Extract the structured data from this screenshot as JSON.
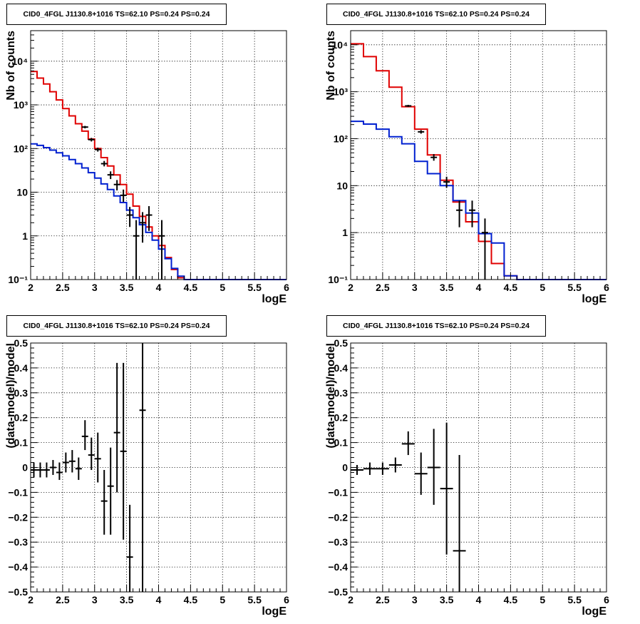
{
  "chart_data": [
    {
      "type": "histogram",
      "title": "CID0_4FGL J1130.8+1016 TS=62.10 PS=0.24 PS=0.24",
      "xlabel": "logE",
      "ylabel": "Nb of counts",
      "xlim": [
        2,
        6
      ],
      "ylim": [
        0.1,
        50000
      ],
      "yscale": "log",
      "x_ticks": [
        "2",
        "2.5",
        "3",
        "3.5",
        "4",
        "4.5",
        "5",
        "5.5",
        "6"
      ],
      "y_ticks": [
        "10⁻¹",
        "1",
        "10",
        "10²",
        "10³",
        "10⁴"
      ],
      "grid": true,
      "bin_edges": [
        2.0,
        2.1,
        2.2,
        2.3,
        2.4,
        2.5,
        2.6,
        2.7,
        2.8,
        2.9,
        3.0,
        3.1,
        3.2,
        3.3,
        3.4,
        3.5,
        3.6,
        3.7,
        3.8,
        3.9,
        4.0,
        4.1,
        4.2,
        4.3,
        4.4,
        4.5,
        4.6,
        4.7,
        4.8,
        4.9,
        5.0,
        5.1,
        5.2,
        5.3,
        5.4,
        5.5,
        5.6,
        5.7,
        5.8,
        5.9,
        6.0
      ],
      "series": [
        {
          "color": "#e00000",
          "style": "step",
          "values": [
            5800,
            4100,
            3000,
            2000,
            1300,
            820,
            560,
            370,
            250,
            165,
            100,
            62,
            40,
            25,
            15,
            9,
            4.8,
            2.8,
            1.6,
            1.0,
            0.6,
            0.32,
            0.17,
            0.11,
            0.1,
            0.1,
            0.1,
            0.1,
            0.1,
            0.1,
            0.1,
            0.1,
            0.1,
            0.1,
            0.1,
            0.1,
            0.1,
            0.1,
            0.1,
            0.1
          ]
        },
        {
          "color": "#0020d0",
          "style": "step",
          "values": [
            128,
            118,
            105,
            92,
            80,
            68,
            56,
            45,
            36,
            28,
            21,
            15.5,
            11.5,
            8.2,
            5.8,
            3.9,
            2.6,
            1.8,
            1.2,
            0.8,
            0.5,
            0.3,
            0.18,
            0.12,
            0.1,
            0.1,
            0.1,
            0.1,
            0.1,
            0.1,
            0.1,
            0.1,
            0.1,
            0.1,
            0.1,
            0.1,
            0.1,
            0.1,
            0.1,
            0.1
          ]
        },
        {
          "color": "#000000",
          "style": "errorbar",
          "points": [
            {
              "x": 2.85,
              "y": 310,
              "lo": 290,
              "hi": 330
            },
            {
              "x": 2.95,
              "y": 160,
              "lo": 145,
              "hi": 175
            },
            {
              "x": 3.05,
              "y": 95,
              "lo": 85,
              "hi": 105
            },
            {
              "x": 3.15,
              "y": 45,
              "lo": 39,
              "hi": 52
            },
            {
              "x": 3.25,
              "y": 25,
              "lo": 20,
              "hi": 30
            },
            {
              "x": 3.35,
              "y": 15,
              "lo": 11,
              "hi": 19
            },
            {
              "x": 3.45,
              "y": 8.5,
              "lo": 6,
              "hi": 11.5
            },
            {
              "x": 3.55,
              "y": 3,
              "lo": 1.6,
              "hi": 4.6
            },
            {
              "x": 3.65,
              "y": 1,
              "lo": 0.1,
              "hi": 2.3
            },
            {
              "x": 3.75,
              "y": 2,
              "lo": 0.7,
              "hi": 3.5
            },
            {
              "x": 3.85,
              "y": 3,
              "lo": 1.3,
              "hi": 4.8
            },
            {
              "x": 4.05,
              "y": 1,
              "lo": 0.1,
              "hi": 2.3
            }
          ]
        }
      ]
    },
    {
      "type": "histogram",
      "title": "CID0_4FGL J1130.8+1016 TS=62.10 PS=0.24 PS=0.24",
      "xlabel": "logE",
      "ylabel": "Nb of counts",
      "xlim": [
        2,
        6
      ],
      "ylim": [
        0.1,
        20000
      ],
      "yscale": "log",
      "x_ticks": [
        "2",
        "2.5",
        "3",
        "3.5",
        "4",
        "4.5",
        "5",
        "5.5",
        "6"
      ],
      "y_ticks": [
        "10⁻¹",
        "1",
        "10",
        "10²",
        "10³",
        "10⁴"
      ],
      "grid": true,
      "bin_edges": [
        2.0,
        2.2,
        2.4,
        2.6,
        2.8,
        3.0,
        3.2,
        3.4,
        3.6,
        3.8,
        4.0,
        4.2,
        4.4,
        4.6,
        4.8,
        5.0,
        5.2,
        5.4,
        5.6,
        5.8,
        6.0
      ],
      "series": [
        {
          "color": "#e00000",
          "style": "step",
          "values": [
            10500,
            5600,
            2800,
            1250,
            480,
            160,
            45,
            13,
            4.5,
            1.7,
            0.65,
            0.22,
            0.12,
            0.1,
            0.1,
            0.1,
            0.1,
            0.1,
            0.1,
            0.1
          ]
        },
        {
          "color": "#0020d0",
          "style": "step",
          "values": [
            235,
            205,
            160,
            110,
            78,
            33,
            18,
            10,
            4.8,
            2.6,
            0.95,
            0.6,
            0.12,
            0.1,
            0.1,
            0.1,
            0.1,
            0.1,
            0.1,
            0.1
          ]
        },
        {
          "color": "#000000",
          "style": "errorbar",
          "points": [
            {
              "x": 2.9,
              "y": 500,
              "lo": 475,
              "hi": 525
            },
            {
              "x": 3.1,
              "y": 140,
              "lo": 128,
              "hi": 152
            },
            {
              "x": 3.3,
              "y": 40,
              "lo": 34,
              "hi": 47
            },
            {
              "x": 3.5,
              "y": 12,
              "lo": 9,
              "hi": 15.5
            },
            {
              "x": 3.7,
              "y": 3,
              "lo": 1.3,
              "hi": 4.8
            },
            {
              "x": 3.9,
              "y": 3,
              "lo": 1.3,
              "hi": 4.8
            },
            {
              "x": 4.1,
              "y": 1,
              "lo": 0.1,
              "hi": 2
            }
          ]
        }
      ]
    },
    {
      "type": "scatter",
      "title": "CID0_4FGL J1130.8+1016 TS=62.10 PS=0.24 PS=0.24",
      "xlabel": "logE",
      "ylabel": "(data-model)/model",
      "xlim": [
        2,
        6
      ],
      "ylim": [
        -0.5,
        0.5
      ],
      "x_ticks": [
        "2",
        "2.5",
        "3",
        "3.5",
        "4",
        "4.5",
        "5",
        "5.5",
        "6"
      ],
      "y_ticks": [
        "−0.5",
        "−0.4",
        "−0.3",
        "−0.2",
        "−0.1",
        "0",
        "0.1",
        "0.2",
        "0.3",
        "0.4",
        "0.5"
      ],
      "grid": true,
      "series": [
        {
          "color": "#000000",
          "style": "errorbar",
          "halfwidth": 0.05,
          "points": [
            {
              "x": 2.05,
              "y": -0.01,
              "lo": -0.04,
              "hi": 0.02
            },
            {
              "x": 2.15,
              "y": -0.01,
              "lo": -0.04,
              "hi": 0.02
            },
            {
              "x": 2.25,
              "y": -0.01,
              "lo": -0.04,
              "hi": 0.02
            },
            {
              "x": 2.35,
              "y": 0,
              "lo": -0.03,
              "hi": 0.03
            },
            {
              "x": 2.45,
              "y": -0.02,
              "lo": -0.05,
              "hi": 0.02
            },
            {
              "x": 2.55,
              "y": 0.02,
              "lo": -0.02,
              "hi": 0.06
            },
            {
              "x": 2.65,
              "y": 0.025,
              "lo": -0.02,
              "hi": 0.07
            },
            {
              "x": 2.75,
              "y": -0.005,
              "lo": -0.05,
              "hi": 0.04
            },
            {
              "x": 2.85,
              "y": 0.125,
              "lo": 0.07,
              "hi": 0.19
            },
            {
              "x": 2.95,
              "y": 0.05,
              "lo": -0.01,
              "hi": 0.12
            },
            {
              "x": 3.05,
              "y": 0.035,
              "lo": -0.06,
              "hi": 0.14
            },
            {
              "x": 3.15,
              "y": -0.135,
              "lo": -0.27,
              "hi": -0.01
            },
            {
              "x": 3.25,
              "y": -0.075,
              "lo": -0.27,
              "hi": 0.08
            },
            {
              "x": 3.35,
              "y": 0.14,
              "lo": -0.1,
              "hi": 0.42
            },
            {
              "x": 3.45,
              "y": 0.065,
              "lo": -0.29,
              "hi": 0.42
            },
            {
              "x": 3.55,
              "y": -0.36,
              "lo": -0.5,
              "hi": -0.15
            },
            {
              "x": 3.75,
              "y": 0.23,
              "lo": -0.5,
              "hi": 0.5
            }
          ]
        }
      ]
    },
    {
      "type": "scatter",
      "title": "CID0_4FGL J1130.8+1016 TS=62.10 PS=0.24 PS=0.24",
      "xlabel": "logE",
      "ylabel": "(data-model)/model",
      "xlim": [
        2,
        6
      ],
      "ylim": [
        -0.5,
        0.5
      ],
      "x_ticks": [
        "2",
        "2.5",
        "3",
        "3.5",
        "4",
        "4.5",
        "5",
        "5.5",
        "6"
      ],
      "y_ticks": [
        "−0.5",
        "−0.4",
        "−0.3",
        "−0.2",
        "−0.1",
        "0",
        "0.1",
        "0.2",
        "0.3",
        "0.4",
        "0.5"
      ],
      "grid": true,
      "series": [
        {
          "color": "#000000",
          "style": "errorbar",
          "halfwidth": 0.1,
          "points": [
            {
              "x": 2.1,
              "y": -0.01,
              "lo": -0.03,
              "hi": 0.01
            },
            {
              "x": 2.3,
              "y": -0.005,
              "lo": -0.03,
              "hi": 0.02
            },
            {
              "x": 2.5,
              "y": -0.005,
              "lo": -0.03,
              "hi": 0.02
            },
            {
              "x": 2.7,
              "y": 0.01,
              "lo": -0.02,
              "hi": 0.04
            },
            {
              "x": 2.9,
              "y": 0.095,
              "lo": 0.05,
              "hi": 0.145
            },
            {
              "x": 3.1,
              "y": -0.025,
              "lo": -0.11,
              "hi": 0.06
            },
            {
              "x": 3.3,
              "y": 0,
              "lo": -0.15,
              "hi": 0.155
            },
            {
              "x": 3.5,
              "y": -0.085,
              "lo": -0.35,
              "hi": 0.18
            },
            {
              "x": 3.7,
              "y": -0.335,
              "lo": -0.5,
              "hi": 0.05
            }
          ]
        }
      ]
    }
  ]
}
